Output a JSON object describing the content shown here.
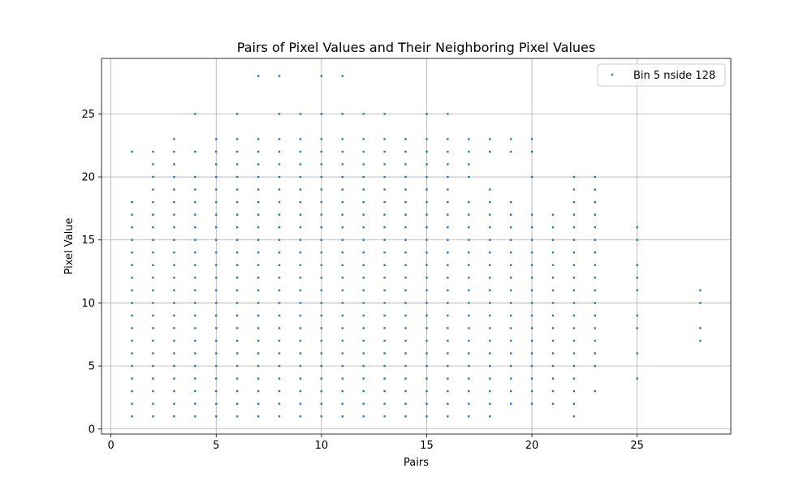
{
  "chart_data": {
    "type": "scatter",
    "title": "Pairs of Pixel Values and Their Neighboring Pixel Values",
    "xlabel": "Pairs",
    "ylabel": "Pixel Value",
    "xlim": [
      -0.45,
      29.45
    ],
    "ylim": [
      -0.4,
      29.4
    ],
    "xticks": [
      0,
      5,
      10,
      15,
      20,
      25
    ],
    "yticks": [
      0,
      5,
      10,
      15,
      20,
      25
    ],
    "grid": true,
    "legend_position": "upper right",
    "series": [
      {
        "name": "Bin 5 nside 128",
        "color": "#1f77b4",
        "columns": [
          {
            "x": 1,
            "y": [
              1,
              2,
              3,
              4,
              5,
              6,
              7,
              8,
              9,
              10,
              11,
              12,
              13,
              14,
              15,
              16,
              17,
              18,
              22
            ]
          },
          {
            "x": 2,
            "y": [
              1,
              2,
              3,
              4,
              5,
              6,
              7,
              8,
              9,
              10,
              11,
              12,
              13,
              14,
              15,
              16,
              17,
              18,
              19,
              20,
              21,
              22
            ]
          },
          {
            "x": 3,
            "y": [
              1,
              2,
              3,
              4,
              5,
              6,
              7,
              8,
              9,
              10,
              11,
              12,
              13,
              14,
              15,
              16,
              17,
              18,
              19,
              20,
              21,
              22,
              23
            ]
          },
          {
            "x": 4,
            "y": [
              1,
              2,
              3,
              4,
              5,
              6,
              7,
              8,
              9,
              10,
              11,
              12,
              13,
              14,
              15,
              16,
              17,
              18,
              19,
              20,
              22,
              25
            ]
          },
          {
            "x": 5,
            "y": [
              1,
              2,
              3,
              4,
              5,
              6,
              7,
              8,
              9,
              10,
              11,
              12,
              13,
              14,
              15,
              16,
              17,
              18,
              19,
              20,
              21,
              22,
              23
            ]
          },
          {
            "x": 6,
            "y": [
              1,
              2,
              3,
              4,
              5,
              6,
              7,
              8,
              9,
              10,
              11,
              12,
              13,
              14,
              15,
              16,
              17,
              18,
              19,
              20,
              21,
              22,
              23,
              25
            ]
          },
          {
            "x": 7,
            "y": [
              1,
              2,
              3,
              4,
              5,
              6,
              7,
              8,
              9,
              10,
              11,
              12,
              13,
              14,
              15,
              16,
              17,
              18,
              19,
              20,
              21,
              22,
              23,
              28
            ]
          },
          {
            "x": 8,
            "y": [
              1,
              2,
              3,
              4,
              5,
              6,
              7,
              8,
              9,
              10,
              11,
              12,
              13,
              14,
              15,
              16,
              17,
              18,
              19,
              20,
              21,
              22,
              23,
              25,
              28
            ]
          },
          {
            "x": 9,
            "y": [
              1,
              2,
              3,
              4,
              5,
              6,
              7,
              8,
              9,
              10,
              11,
              12,
              13,
              14,
              15,
              16,
              17,
              18,
              19,
              20,
              21,
              22,
              23,
              25
            ]
          },
          {
            "x": 10,
            "y": [
              1,
              2,
              3,
              4,
              5,
              6,
              7,
              8,
              9,
              10,
              11,
              12,
              13,
              14,
              15,
              16,
              17,
              18,
              19,
              20,
              21,
              22,
              23,
              25,
              28
            ]
          },
          {
            "x": 11,
            "y": [
              1,
              2,
              3,
              4,
              5,
              6,
              7,
              8,
              9,
              10,
              11,
              12,
              13,
              14,
              15,
              16,
              17,
              18,
              19,
              20,
              21,
              22,
              23,
              25,
              28
            ]
          },
          {
            "x": 12,
            "y": [
              1,
              2,
              3,
              4,
              5,
              6,
              7,
              8,
              9,
              10,
              11,
              12,
              13,
              14,
              15,
              16,
              17,
              18,
              19,
              20,
              21,
              22,
              23,
              25
            ]
          },
          {
            "x": 13,
            "y": [
              1,
              2,
              3,
              4,
              5,
              6,
              7,
              8,
              9,
              10,
              11,
              12,
              13,
              14,
              15,
              16,
              17,
              18,
              19,
              20,
              21,
              22,
              23,
              25
            ]
          },
          {
            "x": 14,
            "y": [
              1,
              2,
              3,
              4,
              5,
              6,
              7,
              8,
              9,
              10,
              11,
              12,
              13,
              14,
              15,
              16,
              17,
              18,
              19,
              20,
              21,
              22,
              23
            ]
          },
          {
            "x": 15,
            "y": [
              1,
              2,
              3,
              4,
              5,
              6,
              7,
              8,
              9,
              10,
              11,
              12,
              13,
              14,
              15,
              16,
              17,
              18,
              19,
              20,
              21,
              22,
              23,
              25
            ]
          },
          {
            "x": 16,
            "y": [
              1,
              2,
              3,
              4,
              5,
              6,
              7,
              8,
              9,
              10,
              11,
              12,
              13,
              14,
              15,
              16,
              17,
              18,
              19,
              20,
              21,
              22,
              23,
              25
            ]
          },
          {
            "x": 17,
            "y": [
              1,
              2,
              3,
              4,
              5,
              6,
              7,
              8,
              9,
              10,
              11,
              12,
              13,
              14,
              15,
              16,
              17,
              18,
              20,
              21,
              22,
              23
            ]
          },
          {
            "x": 18,
            "y": [
              1,
              2,
              3,
              4,
              5,
              6,
              7,
              8,
              9,
              10,
              11,
              12,
              13,
              14,
              15,
              16,
              17,
              18,
              19,
              22,
              23
            ]
          },
          {
            "x": 19,
            "y": [
              2,
              3,
              4,
              5,
              6,
              7,
              8,
              9,
              10,
              11,
              12,
              13,
              14,
              15,
              16,
              17,
              18,
              22,
              23
            ]
          },
          {
            "x": 20,
            "y": [
              2,
              3,
              4,
              5,
              6,
              7,
              8,
              9,
              10,
              11,
              12,
              13,
              14,
              15,
              16,
              17,
              20,
              22,
              23
            ]
          },
          {
            "x": 21,
            "y": [
              2,
              3,
              4,
              5,
              6,
              7,
              8,
              9,
              10,
              11,
              12,
              13,
              14,
              15,
              16,
              17
            ]
          },
          {
            "x": 22,
            "y": [
              1,
              2,
              3,
              4,
              5,
              6,
              7,
              8,
              9,
              10,
              11,
              12,
              13,
              14,
              15,
              16,
              17,
              18,
              19,
              20
            ]
          },
          {
            "x": 23,
            "y": [
              3,
              5,
              6,
              7,
              8,
              9,
              10,
              11,
              12,
              13,
              14,
              15,
              16,
              17,
              18,
              19,
              20
            ]
          },
          {
            "x": 25,
            "y": [
              4,
              6,
              8,
              9,
              11,
              12,
              13,
              15,
              16
            ]
          },
          {
            "x": 28,
            "y": [
              7,
              8,
              10,
              11
            ]
          }
        ]
      }
    ]
  }
}
